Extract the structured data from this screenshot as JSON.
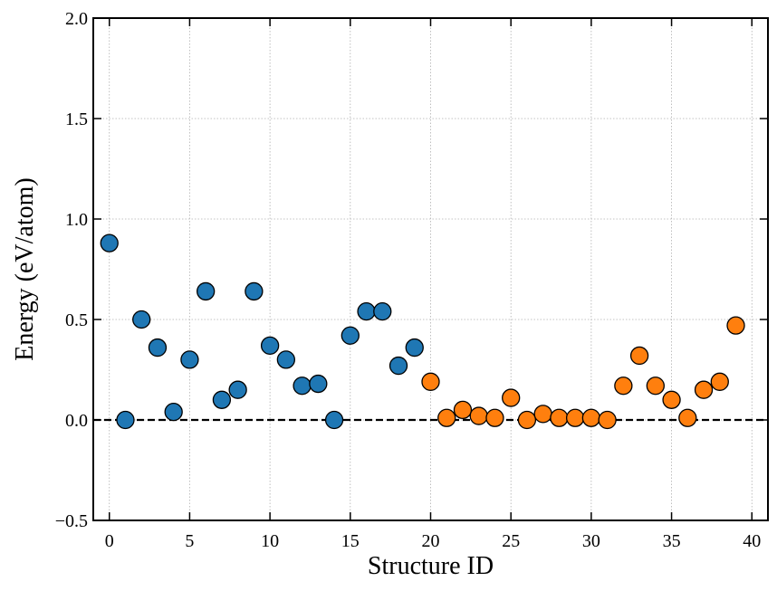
{
  "chart_data": {
    "type": "scatter",
    "title": "",
    "xlabel": "Structure ID",
    "ylabel": "Energy (eV/atom)",
    "xlim": [
      -1,
      41
    ],
    "ylim": [
      -0.5,
      2.0
    ],
    "x_ticks": [
      0,
      5,
      10,
      15,
      20,
      25,
      30,
      35,
      40
    ],
    "y_ticks": [
      -0.5,
      0.0,
      0.5,
      1.0,
      1.5,
      2.0
    ],
    "x_tick_labels": [
      "0",
      "5",
      "10",
      "15",
      "20",
      "25",
      "30",
      "35",
      "40"
    ],
    "y_tick_labels": [
      "−0.5",
      "0.0",
      "0.5",
      "1.0",
      "1.5",
      "2.0"
    ],
    "grid": true,
    "reference_line": {
      "y": 0.0,
      "style": "dashed",
      "color": "#000000"
    },
    "series": [
      {
        "color": "#1f77b4",
        "x": [
          0,
          1,
          2,
          3,
          4,
          5,
          6,
          7,
          8,
          9,
          10,
          11,
          12,
          13,
          14,
          15,
          16,
          17,
          18,
          19
        ],
        "y": [
          0.88,
          0.0,
          0.5,
          0.36,
          0.04,
          0.3,
          0.64,
          0.1,
          0.15,
          0.64,
          0.37,
          0.3,
          0.17,
          0.18,
          0.0,
          0.42,
          0.54,
          0.54,
          0.27,
          0.36
        ]
      },
      {
        "color": "#ff7f0e",
        "x": [
          20,
          21,
          22,
          23,
          24,
          25,
          26,
          27,
          28,
          29,
          30,
          31,
          32,
          33,
          34,
          35,
          36,
          37,
          38,
          39
        ],
        "y": [
          0.19,
          0.01,
          0.05,
          0.02,
          0.01,
          0.11,
          0.0,
          0.03,
          0.01,
          0.01,
          0.01,
          0.0,
          0.17,
          0.32,
          0.17,
          0.1,
          0.01,
          0.15,
          0.19,
          0.47
        ]
      }
    ]
  }
}
